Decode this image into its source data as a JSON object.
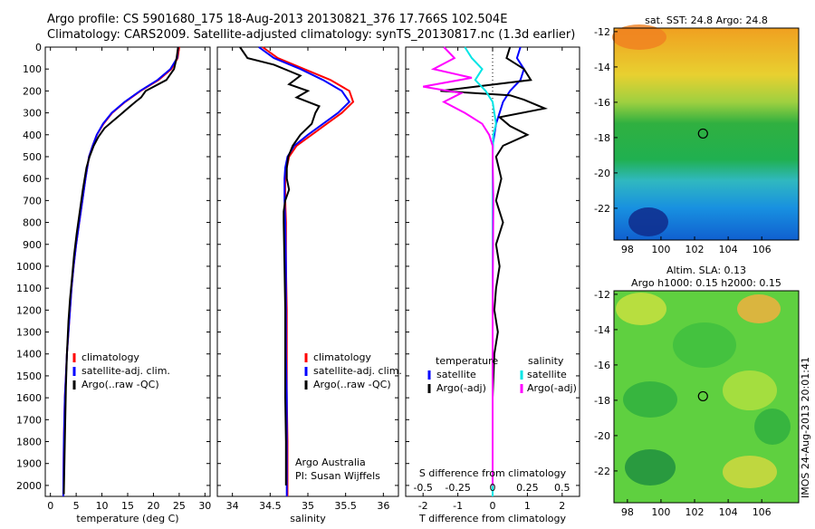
{
  "title": {
    "line1": "Argo profile: CS 5901680_175 18-Aug-2013 20130821_376 17.766S 102.504E",
    "line2": "Climatology: CARS2009. Satellite-adjusted climatology: synTS_20130817.nc (1.3d earlier)"
  },
  "colors": {
    "climatology": "#ff0000",
    "satellite": "#0000ff",
    "argo": "#000000",
    "sat_salinity": "#00e5e5",
    "argo_salinity": "#ff00ff"
  },
  "chart_data": [
    {
      "type": "line",
      "name": "temperature-profile",
      "xlabel": "temperature (deg C)",
      "ylim": [
        2050,
        0
      ],
      "xlim": [
        -1,
        31
      ],
      "xticks": [
        0,
        5,
        10,
        15,
        20,
        25,
        30
      ],
      "yticks": [
        0,
        100,
        200,
        300,
        400,
        500,
        600,
        700,
        800,
        900,
        1000,
        1100,
        1200,
        1300,
        1400,
        1500,
        1600,
        1700,
        1800,
        1900,
        2000
      ],
      "legend": [
        "climatology",
        "satellite-adj. clim.",
        "Argo(..raw -QC)"
      ],
      "series": [
        {
          "name": "climatology",
          "x": [
            25,
            24.7,
            23.5,
            21,
            17.5,
            14.5,
            12,
            10.3,
            9,
            8.2,
            7.5,
            6.8,
            6.2,
            5.6,
            5,
            4.5,
            4.1,
            3.8,
            3.5,
            3.2,
            3,
            2.8,
            2.6,
            2.5
          ],
          "y": [
            0,
            50,
            100,
            150,
            200,
            250,
            300,
            350,
            400,
            450,
            500,
            600,
            700,
            800,
            900,
            1000,
            1100,
            1200,
            1300,
            1400,
            1500,
            1600,
            1800,
            2050
          ]
        },
        {
          "name": "satellite-adj. clim.",
          "x": [
            24.8,
            24.6,
            23.3,
            20.8,
            17.4,
            14.4,
            11.9,
            10.2,
            9,
            8.2,
            7.5,
            6.8,
            6.2,
            5.6,
            5,
            4.5,
            4.1,
            3.8,
            3.5,
            3.2,
            3,
            2.8,
            2.6,
            2.5
          ],
          "y": [
            0,
            50,
            100,
            150,
            200,
            250,
            300,
            350,
            400,
            450,
            500,
            600,
            700,
            800,
            900,
            1000,
            1100,
            1200,
            1300,
            1400,
            1500,
            1600,
            1800,
            2050
          ]
        },
        {
          "name": "Argo(..raw -QC)",
          "x": [
            24.8,
            24.5,
            24,
            22.5,
            18.5,
            17.6,
            16.5,
            15,
            13.5,
            12,
            10.5,
            9.3,
            8.4,
            7.6,
            7,
            6.3,
            5.7,
            5.1,
            4.6,
            4.2,
            3.8,
            3.5,
            3.2,
            3,
            2.8,
            2.6
          ],
          "y": [
            0,
            50,
            100,
            150,
            200,
            230,
            250,
            280,
            310,
            340,
            370,
            410,
            450,
            500,
            550,
            650,
            750,
            850,
            950,
            1050,
            1150,
            1250,
            1400,
            1550,
            1800,
            2040
          ]
        }
      ]
    },
    {
      "type": "line",
      "name": "salinity-profile",
      "xlabel": "salinity",
      "ylim": [
        2050,
        0
      ],
      "xlim": [
        33.8,
        36.2
      ],
      "xticks": [
        34,
        34.5,
        35,
        35.5,
        36
      ],
      "legend": [
        "climatology",
        "satellite-adj. clim.",
        "Argo(..raw -QC)"
      ],
      "annotation": [
        "Argo Australia",
        "PI: Susan Wijffels"
      ],
      "series": [
        {
          "name": "climatology",
          "x": [
            34.4,
            34.6,
            34.95,
            35.3,
            35.55,
            35.6,
            35.45,
            35.25,
            35.05,
            34.85,
            34.75,
            34.72,
            34.7,
            34.7,
            34.71,
            34.71,
            34.72,
            34.72,
            34.72,
            34.73,
            34.73
          ],
          "y": [
            0,
            50,
            100,
            150,
            200,
            250,
            300,
            350,
            400,
            450,
            500,
            550,
            600,
            700,
            800,
            1000,
            1200,
            1400,
            1600,
            1800,
            2050
          ]
        },
        {
          "name": "satellite-adj. clim.",
          "x": [
            34.35,
            34.55,
            34.9,
            35.2,
            35.45,
            35.55,
            35.4,
            35.2,
            35,
            34.82,
            34.73,
            34.7,
            34.69,
            34.69,
            34.7,
            34.71,
            34.71,
            34.71,
            34.72,
            34.72,
            34.72
          ],
          "y": [
            0,
            50,
            100,
            150,
            200,
            250,
            300,
            350,
            400,
            450,
            500,
            550,
            600,
            700,
            800,
            1000,
            1200,
            1400,
            1600,
            1800,
            2050
          ]
        },
        {
          "name": "Argo(..raw -QC)",
          "x": [
            34.1,
            34.2,
            34.55,
            34.9,
            34.75,
            35,
            34.85,
            35.15,
            35.1,
            35.05,
            34.9,
            34.8,
            34.74,
            34.72,
            34.72,
            34.75,
            34.7,
            34.68,
            34.68,
            34.69,
            34.7,
            34.7,
            34.7,
            34.71,
            34.71,
            34.71
          ],
          "y": [
            0,
            50,
            80,
            130,
            170,
            200,
            230,
            270,
            300,
            350,
            400,
            450,
            500,
            550,
            600,
            650,
            700,
            750,
            800,
            1000,
            1200,
            1400,
            1600,
            1800,
            1950,
            2000
          ]
        }
      ]
    },
    {
      "type": "line",
      "name": "difference-profile",
      "xlabel": "T difference from climatology",
      "top_xlabel": "S difference from climatology",
      "ylim": [
        2050,
        0
      ],
      "xlim": [
        -2.5,
        2.5
      ],
      "xticks": [
        -2,
        -1,
        0,
        1,
        2
      ],
      "top_xticks": [
        -0.5,
        -0.25,
        0,
        0.25,
        0.5
      ],
      "legend_temperature_title": "temperature",
      "legend_salinity_title": "salinity",
      "legend_temperature": [
        "satellite",
        "Argo(-adj)"
      ],
      "legend_salinity": [
        "satellite",
        "Argo(-adj)"
      ],
      "series": [
        {
          "name": "satellite",
          "x": [
            0.8,
            0.7,
            0.9,
            0.8,
            0.5,
            0.3,
            0.2,
            0.1,
            0.05,
            0,
            0,
            0,
            0,
            0,
            0,
            0
          ],
          "y": [
            0,
            50,
            100,
            150,
            200,
            250,
            300,
            350,
            400,
            450,
            500,
            700,
            1000,
            1400,
            1800,
            2050
          ]
        },
        {
          "name": "Argo(-adj)",
          "x": [
            0.5,
            0.4,
            0.9,
            1.1,
            -1.5,
            0.5,
            0.9,
            1.5,
            0.2,
            0.5,
            1,
            0.3,
            0.1,
            0.25,
            0.1,
            0.3,
            0.1,
            0.2,
            0.1,
            0.05,
            0.15,
            0.05,
            0,
            0
          ],
          "y": [
            0,
            50,
            100,
            150,
            200,
            220,
            240,
            280,
            320,
            360,
            400,
            450,
            500,
            600,
            700,
            800,
            900,
            1000,
            1100,
            1200,
            1300,
            1400,
            1600,
            2000
          ]
        },
        {
          "name": "satellite salinity",
          "x": [
            -0.8,
            -0.6,
            -0.3,
            -0.5,
            -0.2,
            0,
            0.05,
            0.1,
            0.02,
            0,
            0,
            0,
            0,
            0
          ],
          "y": [
            0,
            50,
            100,
            150,
            200,
            250,
            300,
            350,
            400,
            500,
            700,
            1000,
            1500,
            2050
          ]
        },
        {
          "name": "Argo salinity",
          "x": [
            -1.4,
            -1.1,
            -1.7,
            -0.6,
            -2.0,
            -0.9,
            -1.4,
            -0.8,
            -0.3,
            -0.1,
            0,
            0,
            0.02,
            0,
            0
          ],
          "y": [
            0,
            50,
            100,
            140,
            180,
            210,
            250,
            300,
            350,
            400,
            450,
            500,
            700,
            1200,
            2000
          ]
        }
      ]
    },
    {
      "type": "heatmap",
      "name": "sst-map",
      "title": "sat. SST: 24.8  Argo: 24.8",
      "xlim": [
        97.2,
        108.2
      ],
      "ylim": [
        -23.8,
        -11.8
      ],
      "xticks": [
        98,
        100,
        102,
        104,
        106
      ],
      "yticks": [
        -12,
        -14,
        -16,
        -18,
        -20,
        -22
      ],
      "marker": {
        "lon": 102.5,
        "lat": -17.77
      }
    },
    {
      "type": "heatmap",
      "name": "sla-map",
      "title_line1": "Altim. SLA: 0.13",
      "title_line2": "Argo h1000: 0.15 h2000: 0.15",
      "xlim": [
        97.2,
        108.2
      ],
      "ylim": [
        -23.8,
        -11.8
      ],
      "xticks": [
        98,
        100,
        102,
        104,
        106
      ],
      "yticks": [
        -12,
        -14,
        -16,
        -18,
        -20,
        -22
      ],
      "marker": {
        "lon": 102.5,
        "lat": -17.77
      }
    }
  ],
  "footer": "IMOS 24-Aug-2013 20:01:41"
}
